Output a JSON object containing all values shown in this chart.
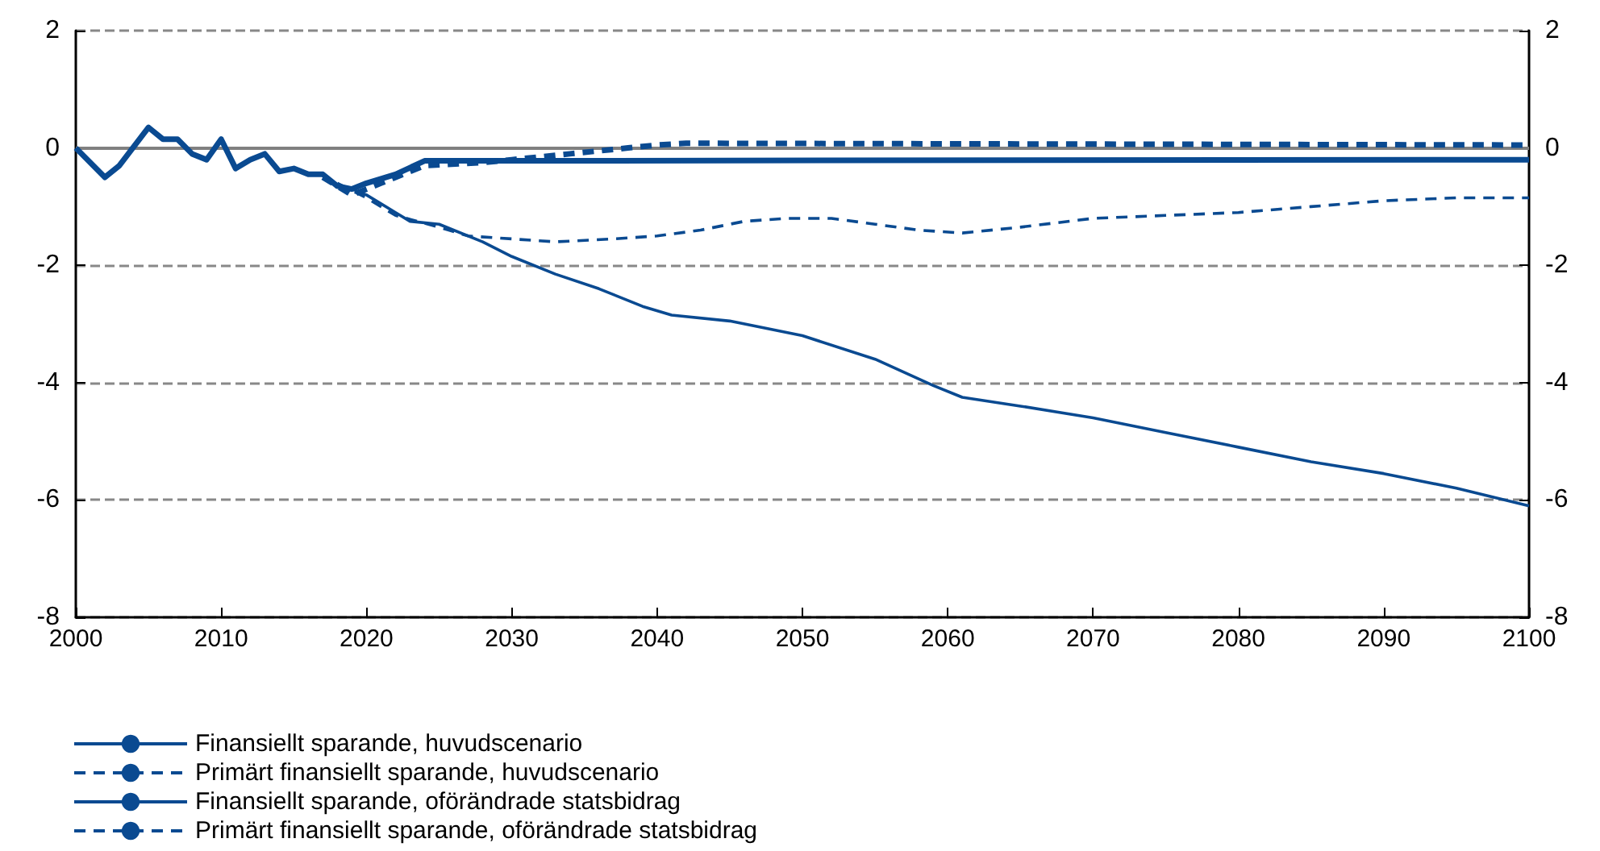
{
  "chart_data": {
    "type": "line",
    "xlim": [
      2000,
      2100
    ],
    "xticks": [
      2000,
      2010,
      2020,
      2030,
      2040,
      2050,
      2060,
      2070,
      2080,
      2090,
      2100
    ],
    "ylim": [
      -8,
      2
    ],
    "yticks": [
      -8,
      -6,
      -4,
      -2,
      0,
      2
    ],
    "y2lim": [
      -8,
      2
    ],
    "y2ticks": [
      -8,
      -6,
      -4,
      -2,
      0,
      2
    ],
    "grid": "y",
    "legend": "bottom",
    "marker": "none",
    "ref_lines": [
      {
        "axis": "y",
        "value": 0,
        "color": "#808080",
        "line_style": "solid"
      }
    ],
    "series": [
      {
        "name": "Finansiellt sparande, huvudscenario",
        "color": "#0a4a91",
        "line_style": "solid",
        "x": [
          2000,
          2002,
          2003,
          2005,
          2006,
          2007,
          2008,
          2009,
          2010,
          2011,
          2012,
          2013,
          2014,
          2015,
          2016,
          2017,
          2018,
          2019,
          2020,
          2022,
          2024,
          2025,
          2100
        ],
        "values": [
          0,
          -0.5,
          -0.3,
          0.35,
          0.15,
          0.15,
          -0.1,
          -0.2,
          0.15,
          -0.35,
          -0.2,
          -0.1,
          -0.4,
          -0.35,
          -0.45,
          -0.45,
          -0.65,
          -0.7,
          -0.6,
          -0.45,
          -0.22,
          -0.22,
          -0.2
        ]
      },
      {
        "name": "Primärt finansiellt sparande, huvudscenario",
        "color": "#0a4a91",
        "line_style": "dashed",
        "x": [
          2017,
          2019,
          2021,
          2024,
          2028,
          2030,
          2034,
          2038,
          2040,
          2042,
          2100
        ],
        "values": [
          -0.5,
          -0.8,
          -0.6,
          -0.3,
          -0.25,
          -0.2,
          -0.1,
          0,
          0.05,
          0.08,
          0.05
        ]
      },
      {
        "name": "Finansiellt sparande, oförändrade statsbidrag",
        "color": "#0a4a91",
        "line_style": "solid",
        "x": [
          2019,
          2020,
          2022,
          2023,
          2025,
          2028,
          2030,
          2033,
          2036,
          2039,
          2041,
          2045,
          2050,
          2055,
          2059,
          2061,
          2065,
          2070,
          2075,
          2080,
          2085,
          2090,
          2095,
          2100
        ],
        "values": [
          -0.7,
          -0.8,
          -1.1,
          -1.25,
          -1.3,
          -1.6,
          -1.85,
          -2.15,
          -2.4,
          -2.7,
          -2.85,
          -2.95,
          -3.2,
          -3.6,
          -4.05,
          -4.25,
          -4.4,
          -4.6,
          -4.85,
          -5.1,
          -5.35,
          -5.55,
          -5.8,
          -6.1
        ]
      },
      {
        "name": "Primärt finansiellt sparande, oförändrade statsbidrag",
        "color": "#0a4a91",
        "line_style": "dashed",
        "x": [
          2018,
          2020,
          2022,
          2025,
          2027,
          2030,
          2033,
          2037,
          2040,
          2043,
          2046,
          2049,
          2052,
          2055,
          2058,
          2061,
          2065,
          2070,
          2075,
          2080,
          2085,
          2090,
          2095,
          2100
        ],
        "values": [
          -0.6,
          -0.85,
          -1.15,
          -1.35,
          -1.5,
          -1.55,
          -1.6,
          -1.55,
          -1.5,
          -1.4,
          -1.25,
          -1.2,
          -1.2,
          -1.3,
          -1.4,
          -1.45,
          -1.35,
          -1.2,
          -1.15,
          -1.1,
          -1.0,
          -0.9,
          -0.85,
          -0.85
        ]
      }
    ]
  }
}
